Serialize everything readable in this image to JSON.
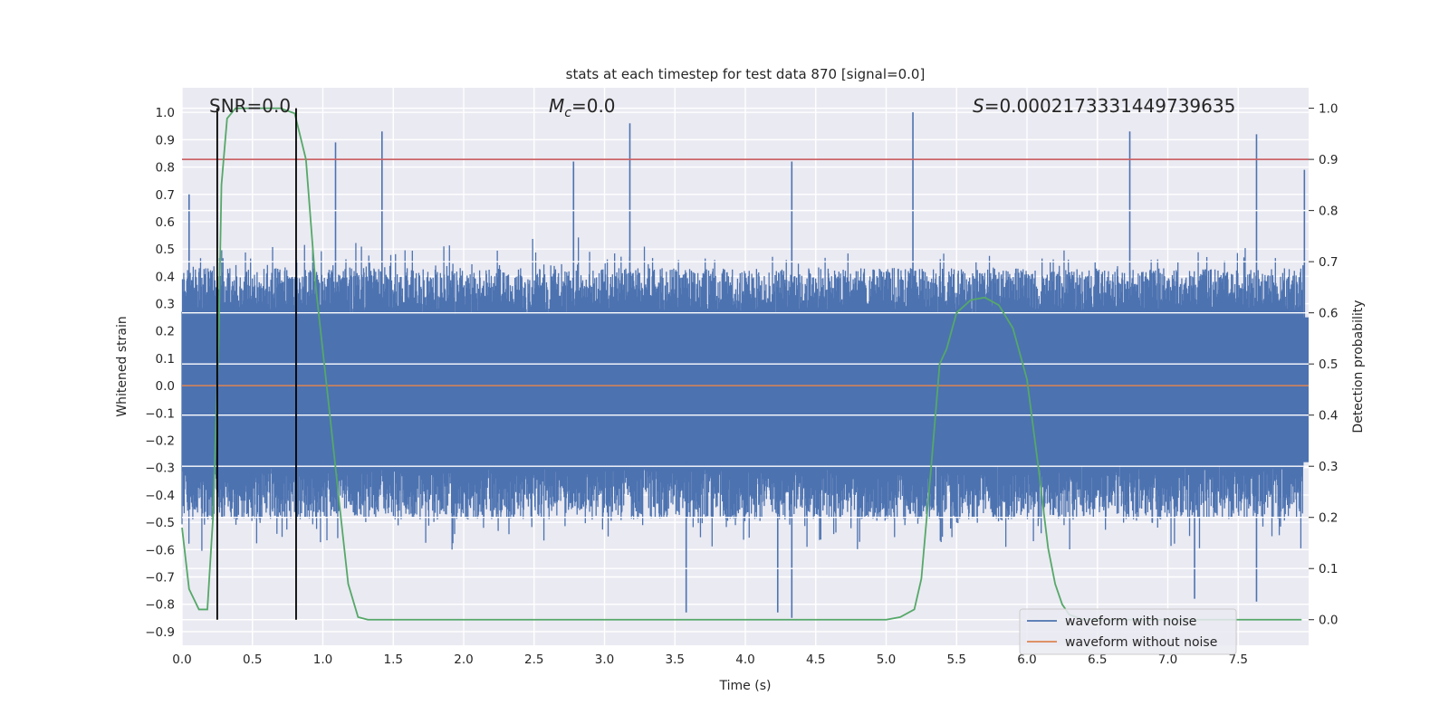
{
  "chart_data": {
    "type": "line",
    "title": "stats at each timestep for test data 870 [signal=0.0]",
    "xlabel": "Time (s)",
    "ylabel": "Whitened strain",
    "y2label": "Detection probability",
    "xlim": [
      0.0,
      8.0
    ],
    "ylim": [
      -0.95,
      1.09
    ],
    "y2lim": [
      -0.05,
      1.04
    ],
    "x_ticks": [
      "0.0",
      "0.5",
      "1.0",
      "1.5",
      "2.0",
      "2.5",
      "3.0",
      "3.5",
      "4.0",
      "4.5",
      "5.0",
      "5.5",
      "6.0",
      "6.5",
      "7.0",
      "7.5"
    ],
    "y_ticks": [
      "1.0",
      "0.9",
      "0.8",
      "0.7",
      "0.6",
      "0.5",
      "0.4",
      "0.3",
      "0.2",
      "0.1",
      "0.0",
      "-0.1",
      "-0.2",
      "-0.3",
      "-0.4",
      "-0.5",
      "-0.6",
      "-0.7",
      "-0.8",
      "-0.9"
    ],
    "y2_ticks": [
      "1.0",
      "0.9",
      "0.8",
      "0.7",
      "0.6",
      "0.5",
      "0.4",
      "0.3",
      "0.2",
      "0.1",
      "0.0"
    ],
    "annotations": {
      "snr": "SNR=0.0",
      "mc_symbol": "M",
      "mc_sub": "c",
      "mc_value": "=0.0",
      "s_symbol": "S",
      "s_value": "=0.0002173331449739635"
    },
    "threshold_y2": 0.9,
    "vlines_x": [
      0.25,
      0.81
    ],
    "legend_position": "lower right",
    "series": [
      {
        "name": "waveform with noise",
        "color": "#4c72b0",
        "note": "dense noisy strain trace across 0-8 s, roughly within -0.85 to 1.0",
        "peaks": [
          {
            "x": 0.05,
            "y": 0.7
          },
          {
            "x": 1.09,
            "y": 0.89
          },
          {
            "x": 1.42,
            "y": 0.93
          },
          {
            "x": 2.78,
            "y": 0.82
          },
          {
            "x": 3.18,
            "y": 0.96
          },
          {
            "x": 4.33,
            "y": 0.82
          },
          {
            "x": 5.19,
            "y": 1.0
          },
          {
            "x": 6.73,
            "y": 0.93
          },
          {
            "x": 7.63,
            "y": 0.92
          },
          {
            "x": 7.97,
            "y": 0.79
          }
        ],
        "troughs": [
          {
            "x": 3.58,
            "y": -0.83
          },
          {
            "x": 4.23,
            "y": -0.83
          },
          {
            "x": 4.33,
            "y": -0.85
          },
          {
            "x": 7.19,
            "y": -0.78
          },
          {
            "x": 7.63,
            "y": -0.79
          }
        ]
      },
      {
        "name": "waveform without noise",
        "color": "#dd8452",
        "x": [
          0.0,
          8.0
        ],
        "y": [
          0.0,
          0.0
        ]
      },
      {
        "name": "Detection probability",
        "color": "#55a868",
        "axis": "y2",
        "x": [
          0.0,
          0.05,
          0.12,
          0.18,
          0.22,
          0.26,
          0.28,
          0.32,
          0.38,
          0.5,
          0.7,
          0.8,
          0.88,
          0.95,
          1.05,
          1.12,
          1.18,
          1.25,
          1.32,
          1.5,
          2.5,
          3.5,
          4.5,
          5.0,
          5.1,
          5.2,
          5.25,
          5.32,
          5.38,
          5.43,
          5.5,
          5.6,
          5.7,
          5.8,
          5.9,
          6.0,
          6.08,
          6.15,
          6.2,
          6.25,
          6.3,
          6.4,
          6.5,
          7.0,
          7.5,
          7.95
        ],
        "y": [
          0.18,
          0.06,
          0.02,
          0.02,
          0.2,
          0.55,
          0.85,
          0.98,
          1.0,
          1.0,
          1.0,
          0.99,
          0.9,
          0.65,
          0.4,
          0.22,
          0.07,
          0.005,
          0.0,
          0.0,
          0.0,
          0.0,
          0.0,
          0.0,
          0.005,
          0.02,
          0.08,
          0.3,
          0.5,
          0.53,
          0.6,
          0.625,
          0.63,
          0.615,
          0.57,
          0.47,
          0.3,
          0.14,
          0.07,
          0.03,
          0.01,
          0.0,
          0.0,
          0.0,
          0.0,
          0.0
        ]
      }
    ]
  }
}
